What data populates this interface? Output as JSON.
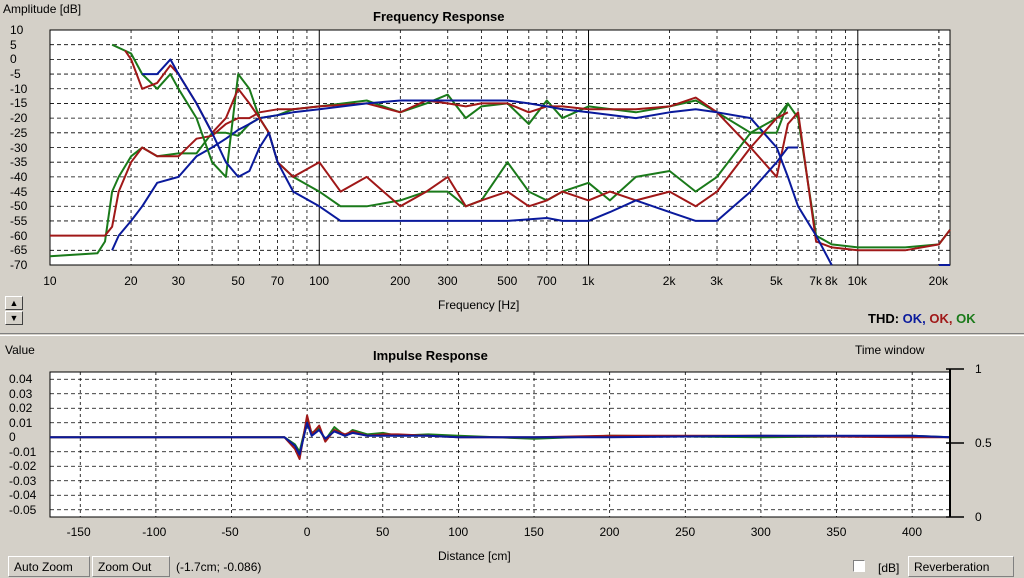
{
  "freq_panel": {
    "title": "Frequency Response",
    "y_axis_label": "Amplitude [dB]",
    "x_axis_label": "Frequency [Hz]",
    "y_ticks": [
      "10",
      "5",
      "0",
      "-5",
      "-10",
      "-15",
      "-20",
      "-25",
      "-30",
      "-35",
      "-40",
      "-45",
      "-50",
      "-55",
      "-60",
      "-65",
      "-70"
    ],
    "x_ticks": [
      "10",
      "20",
      "30",
      "50",
      "70",
      "100",
      "200",
      "300",
      "500",
      "700",
      "1k",
      "2k",
      "3k",
      "5k",
      "7k",
      "8k",
      "10k",
      "20k"
    ],
    "thd_label": "THD:",
    "thd_values": [
      {
        "text": "OK,",
        "color": "#0a1a9c"
      },
      {
        "text": "OK,",
        "color": "#a01818"
      },
      {
        "text": "OK",
        "color": "#1a7a1a"
      }
    ],
    "spin_up_icon": "triangle-up-icon",
    "spin_down_icon": "triangle-down-icon"
  },
  "impulse_panel": {
    "title": "Impulse Response",
    "y_axis_label": "Value",
    "x_axis_label": "Distance [cm]",
    "window_label": "Time window",
    "y_ticks": [
      "0.04",
      "0.03",
      "0.02",
      "0.01",
      "0",
      "-0.01",
      "-0.02",
      "-0.03",
      "-0.04",
      "-0.05"
    ],
    "x_ticks": [
      "-150",
      "-100",
      "-50",
      "0",
      "50",
      "100",
      "150",
      "200",
      "250",
      "300",
      "350",
      "400"
    ],
    "right_ticks": [
      "1",
      "0.5",
      "0"
    ]
  },
  "toolbar": {
    "auto_zoom": "Auto Zoom",
    "zoom_out": "Zoom Out",
    "cursor_readout": "(-1.7cm; -0.086)",
    "db_label": "[dB]",
    "db_checked": false,
    "reverberation": "Reverberation"
  },
  "colors": {
    "blue": "#0a1a9c",
    "red": "#a01818",
    "green": "#1a7a1a",
    "plot_bg": "#ffffff",
    "grid": "#000000"
  },
  "chart_data": [
    {
      "type": "line",
      "title": "Frequency Response",
      "xlabel": "Frequency [Hz]",
      "ylabel": "Amplitude [dB]",
      "x_scale": "log",
      "xlim": [
        10,
        22000
      ],
      "ylim": [
        -70,
        10
      ],
      "grid": true,
      "series": [
        {
          "color": "#1a7a1a",
          "x": [
            10,
            15,
            16,
            17,
            18,
            20,
            22,
            25,
            30,
            35,
            40,
            45,
            50,
            55,
            60,
            70,
            80,
            100,
            150,
            200,
            250,
            300,
            350,
            400,
            500,
            600,
            700,
            800,
            1000,
            1500,
            2000,
            2500,
            3000,
            4000,
            5000,
            5500,
            6000,
            7000,
            8000,
            10000,
            15000,
            20000,
            22000
          ],
          "y": [
            -67,
            -66,
            -62,
            -45,
            -40,
            -33,
            -30,
            -33,
            -32,
            -32,
            -25,
            -25,
            -26,
            -22,
            -20,
            -19,
            -17,
            -16,
            -14,
            -18,
            -15,
            -12,
            -20,
            -16,
            -15,
            -22,
            -14,
            -20,
            -16,
            -18,
            -16,
            -14,
            -18,
            -25,
            -25,
            -15,
            -20,
            -60,
            -63,
            -64,
            -64,
            -63,
            -58
          ]
        },
        {
          "color": "#a01818",
          "x": [
            10,
            15,
            16,
            17,
            18,
            20,
            22,
            25,
            30,
            35,
            40,
            45,
            50,
            55,
            60,
            70,
            80,
            100,
            150,
            200,
            250,
            300,
            350,
            400,
            500,
            600,
            700,
            800,
            1000,
            1500,
            2000,
            2500,
            3000,
            4000,
            5000,
            5500,
            6000,
            7000,
            8000,
            10000,
            15000,
            20000,
            22000
          ],
          "y": [
            -60,
            -60,
            -60,
            -57,
            -45,
            -35,
            -30,
            -33,
            -33,
            -27,
            -26,
            -22,
            -20,
            -20,
            -18,
            -17,
            -17,
            -16,
            -15,
            -18,
            -14,
            -15,
            -16,
            -15,
            -15,
            -18,
            -16,
            -16,
            -17,
            -17,
            -16,
            -13,
            -18,
            -30,
            -40,
            -22,
            -18,
            -62,
            -64,
            -65,
            -65,
            -63,
            -58
          ]
        },
        {
          "color": "#0a1a9c",
          "x": [
            10,
            15,
            16,
            17,
            18,
            20,
            22,
            25,
            30,
            35,
            40,
            45,
            50,
            55,
            60,
            70,
            80,
            100,
            150,
            200,
            250,
            300,
            350,
            400,
            500,
            600,
            700,
            800,
            1000,
            1500,
            2000,
            2500,
            3000,
            4000,
            5000,
            5500,
            6000,
            7000,
            8000,
            10000,
            15000,
            20000,
            22000
          ],
          "y": [
            null,
            null,
            null,
            -65,
            -60,
            -55,
            -50,
            -42,
            -40,
            -33,
            -30,
            -27,
            -24,
            -22,
            -20,
            -19,
            -18,
            -17,
            -15,
            -14,
            -14,
            -14,
            -14,
            -14,
            -14,
            -15,
            -16,
            -17,
            -18,
            -20,
            -18,
            -17,
            -18,
            -20,
            -30,
            -40,
            -50,
            -60,
            -72,
            null,
            null,
            -72,
            -72
          ]
        },
        {
          "color": "#1a7a1a",
          "x": [
            17,
            20,
            22,
            25,
            28,
            30,
            35,
            40,
            45,
            50,
            55,
            60,
            65,
            70,
            80,
            100,
            120,
            150,
            200,
            250,
            300,
            350,
            400,
            500,
            600,
            700,
            800,
            1000,
            1200,
            1500,
            2000,
            2500,
            3000,
            4000,
            5000,
            5500
          ],
          "y": [
            5,
            2,
            -5,
            -10,
            -5,
            -10,
            -20,
            -35,
            -40,
            -5,
            -10,
            -20,
            -25,
            -35,
            -40,
            -45,
            -50,
            -50,
            -48,
            -45,
            -45,
            -50,
            -48,
            -35,
            -45,
            -48,
            -45,
            -42,
            -48,
            -40,
            -38,
            -45,
            -40,
            -25,
            -20,
            -15
          ]
        },
        {
          "color": "#a01818",
          "x": [
            19,
            20,
            22,
            25,
            28,
            30,
            35,
            40,
            45,
            50,
            55,
            60,
            65,
            70,
            80,
            100,
            120,
            150,
            200,
            250,
            300,
            350,
            400,
            500,
            600,
            700,
            800,
            1000,
            1200,
            1500,
            2000,
            2500,
            3000,
            4000,
            5000,
            5500
          ],
          "y": [
            3,
            0,
            -10,
            -8,
            -2,
            -5,
            -15,
            -25,
            -20,
            -10,
            -15,
            -20,
            -25,
            -35,
            -40,
            -35,
            -45,
            -40,
            -50,
            -45,
            -40,
            -50,
            -48,
            -45,
            -50,
            -48,
            -45,
            -48,
            -45,
            -48,
            -45,
            -50,
            -45,
            -30,
            -20,
            -18
          ]
        },
        {
          "color": "#0a1a9c",
          "x": [
            22,
            25,
            28,
            30,
            35,
            40,
            45,
            50,
            55,
            60,
            65,
            70,
            80,
            100,
            120,
            150,
            200,
            250,
            300,
            400,
            500,
            700,
            800,
            1000,
            1200,
            1500,
            2000,
            2500,
            3000,
            4000,
            5000,
            5500,
            6000
          ],
          "y": [
            -5,
            -5,
            0,
            -5,
            -15,
            -25,
            -35,
            -40,
            -38,
            -30,
            -25,
            -35,
            -45,
            -50,
            -55,
            -55,
            -55,
            -55,
            -55,
            -55,
            -55,
            -54,
            -55,
            -55,
            -52,
            -48,
            -52,
            -55,
            -55,
            -45,
            -35,
            -30,
            -30
          ]
        }
      ]
    },
    {
      "type": "line",
      "title": "Impulse Response",
      "xlabel": "Distance [cm]",
      "ylabel": "Value",
      "xlim": [
        -170,
        425
      ],
      "ylim": [
        -0.055,
        0.045
      ],
      "grid": true,
      "series": [
        {
          "color": "#1a7a1a",
          "x": [
            -170,
            -30,
            -15,
            -8,
            -5,
            0,
            3,
            8,
            12,
            18,
            25,
            30,
            40,
            50,
            60,
            80,
            100,
            150,
            200,
            300,
            400,
            425
          ],
          "y": [
            0,
            0,
            0,
            -0.005,
            -0.01,
            0.012,
            0.003,
            0.006,
            -0.002,
            0.007,
            0.001,
            0.005,
            0.002,
            0.003,
            0.001,
            0.002,
            0.001,
            -0.001,
            0.001,
            0,
            0.001,
            0
          ]
        },
        {
          "color": "#a01818",
          "x": [
            -170,
            -30,
            -15,
            -8,
            -5,
            0,
            3,
            8,
            12,
            18,
            25,
            30,
            40,
            50,
            60,
            80,
            100,
            150,
            200,
            300,
            400,
            425
          ],
          "y": [
            0,
            0,
            0,
            -0.008,
            -0.015,
            0.015,
            0.002,
            0.008,
            -0.003,
            0.005,
            0.002,
            0.004,
            0.001,
            0.002,
            0.002,
            0.001,
            0,
            0,
            0.001,
            0.001,
            0,
            0
          ]
        },
        {
          "color": "#0a1a9c",
          "x": [
            -170,
            -30,
            -15,
            -8,
            -5,
            0,
            3,
            8,
            12,
            18,
            25,
            30,
            40,
            50,
            60,
            80,
            100,
            150,
            200,
            300,
            400,
            425
          ],
          "y": [
            0,
            0,
            0,
            -0.006,
            -0.012,
            0.01,
            0.001,
            0.005,
            -0.001,
            0.004,
            0.001,
            0.003,
            0.001,
            0.001,
            0.001,
            0.001,
            0,
            0,
            0,
            0.001,
            0.001,
            0
          ]
        }
      ]
    }
  ]
}
